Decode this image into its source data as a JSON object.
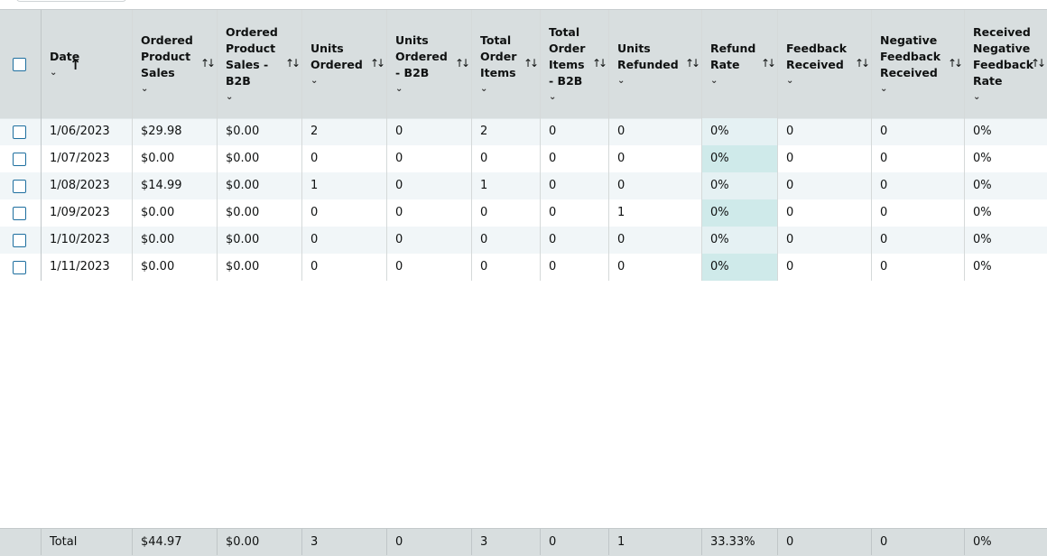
{
  "columns": [
    {
      "key": "date",
      "label": "Date",
      "sortable": true,
      "sort_state": "asc"
    },
    {
      "key": "sales",
      "label": "Ordered Product Sales"
    },
    {
      "key": "sales_b2b",
      "label": "Ordered Product Sales - B2B"
    },
    {
      "key": "units",
      "label": "Units Ordered"
    },
    {
      "key": "units_b2b",
      "label": "Units Ordered - B2B"
    },
    {
      "key": "items",
      "label": "Total Order Items"
    },
    {
      "key": "items_b2b",
      "label": "Total Order Items - B2B"
    },
    {
      "key": "refunded",
      "label": "Units Refunded"
    },
    {
      "key": "refund_rate",
      "label": "Refund Rate"
    },
    {
      "key": "feedback",
      "label": "Feedback Received"
    },
    {
      "key": "neg_feedback",
      "label": "Negative Feedback Received"
    },
    {
      "key": "neg_rate",
      "label": "Received Negative Feedback Rate"
    }
  ],
  "rows": [
    [
      "1/06/2023",
      "$29.98",
      "$0.00",
      "2",
      "0",
      "2",
      "0",
      "0",
      "0%",
      "0",
      "0",
      "0%"
    ],
    [
      "1/07/2023",
      "$0.00",
      "$0.00",
      "0",
      "0",
      "0",
      "0",
      "0",
      "0%",
      "0",
      "0",
      "0%"
    ],
    [
      "1/08/2023",
      "$14.99",
      "$0.00",
      "1",
      "0",
      "1",
      "0",
      "0",
      "0%",
      "0",
      "0",
      "0%"
    ],
    [
      "1/09/2023",
      "$0.00",
      "$0.00",
      "0",
      "0",
      "0",
      "0",
      "1",
      "0%",
      "0",
      "0",
      "0%"
    ],
    [
      "1/10/2023",
      "$0.00",
      "$0.00",
      "0",
      "0",
      "0",
      "0",
      "0",
      "0%",
      "0",
      "0",
      "0%"
    ],
    [
      "1/11/2023",
      "$0.00",
      "$0.00",
      "0",
      "0",
      "0",
      "0",
      "0",
      "0%",
      "0",
      "0",
      "0%"
    ]
  ],
  "totals": [
    "Total",
    "$44.97",
    "$0.00",
    "3",
    "0",
    "3",
    "0",
    "1",
    "33.33%",
    "0",
    "0",
    "0%"
  ],
  "highlight_color": "#cfeaea",
  "checkbox_color": "#1e6f9f"
}
